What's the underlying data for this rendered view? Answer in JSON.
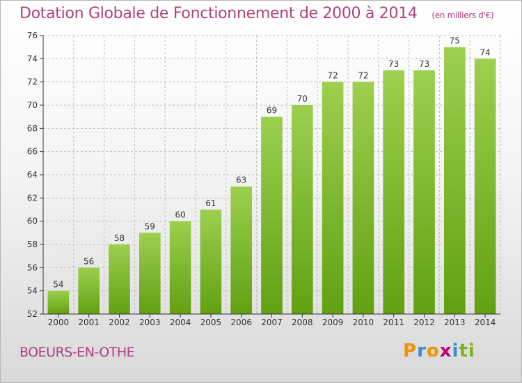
{
  "header": {
    "title": "Dotation Globale de Fonctionnement de 2000 à 2014",
    "subtitle": "(en milliers d'€)"
  },
  "footer": {
    "commune": "BOEURS-EN-OTHE",
    "logo": "Proxiti",
    "logo_letters": [
      "P",
      "r",
      "o",
      "x",
      "i",
      "t",
      "i"
    ]
  },
  "colors": {
    "bar_top": "#9cd04f",
    "bar_bottom": "#62a012",
    "title": "#b0407a",
    "grid": "#bdbdbd",
    "axis": "#333333"
  },
  "chart_data": {
    "type": "bar",
    "title": "Dotation Globale de Fonctionnement de 2000 à 2014",
    "subtitle": "(en milliers d'€)",
    "xlabel": "",
    "ylabel": "",
    "categories": [
      "2000",
      "2001",
      "2002",
      "2003",
      "2004",
      "2005",
      "2006",
      "2007",
      "2008",
      "2009",
      "2010",
      "2011",
      "2012",
      "2013",
      "2014"
    ],
    "values": [
      54,
      56,
      58,
      59,
      60,
      61,
      63,
      69,
      70,
      72,
      72,
      73,
      73,
      75,
      74
    ],
    "ylim": [
      52,
      76
    ],
    "yticks": [
      52,
      54,
      56,
      58,
      60,
      62,
      64,
      66,
      68,
      70,
      72,
      74,
      76
    ],
    "grid": true,
    "data_labels": true
  }
}
